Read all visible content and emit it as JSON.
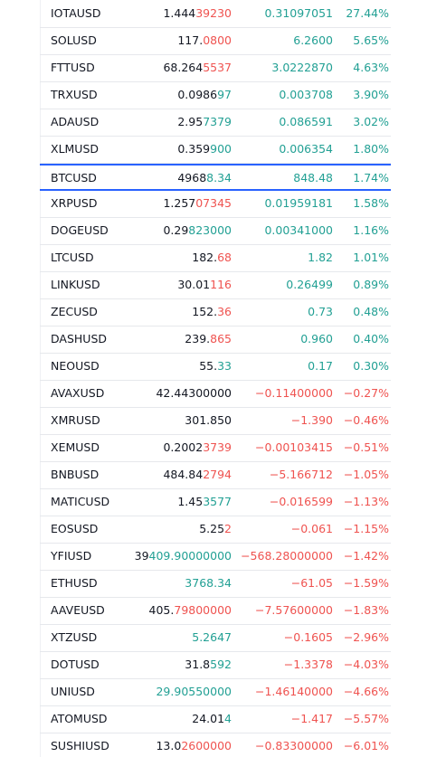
{
  "rows": [
    {
      "symbol": "IOTAUSD",
      "last": "1.444",
      "last_tick": "39230",
      "tick_dir": "down",
      "change": "0.31097051",
      "change_pct": "27.44%"
    },
    {
      "symbol": "SOLUSD",
      "last": "117.",
      "last_tick": "0800",
      "tick_dir": "down",
      "change": "6.2600",
      "change_pct": "5.65%"
    },
    {
      "symbol": "FTTUSD",
      "last": "68.264",
      "last_tick": "5537",
      "tick_dir": "down",
      "change": "3.0222870",
      "change_pct": "4.63%"
    },
    {
      "symbol": "TRXUSD",
      "last": "0.0986",
      "last_tick": "97",
      "tick_dir": "up",
      "change": "0.003708",
      "change_pct": "3.90%"
    },
    {
      "symbol": "ADAUSD",
      "last": "2.95",
      "last_tick": "7379",
      "tick_dir": "up",
      "change": "0.086591",
      "change_pct": "3.02%"
    },
    {
      "symbol": "XLMUSD",
      "last": "0.359",
      "last_tick": "900",
      "tick_dir": "up",
      "change": "0.006354",
      "change_pct": "1.80%"
    },
    {
      "symbol": "BTCUSD",
      "last": "4968",
      "last_tick": "8.34",
      "tick_dir": "up",
      "change": "848.48",
      "change_pct": "1.74%",
      "selected": true
    },
    {
      "symbol": "XRPUSD",
      "last": "1.257",
      "last_tick": "07345",
      "tick_dir": "down",
      "change": "0.01959181",
      "change_pct": "1.58%"
    },
    {
      "symbol": "DOGEUSD",
      "last": "0.29",
      "last_tick": "823000",
      "tick_dir": "up",
      "change": "0.00341000",
      "change_pct": "1.16%"
    },
    {
      "symbol": "LTCUSD",
      "last": "182.",
      "last_tick": "68",
      "tick_dir": "down",
      "change": "1.82",
      "change_pct": "1.01%"
    },
    {
      "symbol": "LINKUSD",
      "last": "30.01",
      "last_tick": "116",
      "tick_dir": "down",
      "change": "0.26499",
      "change_pct": "0.89%"
    },
    {
      "symbol": "ZECUSD",
      "last": "152.",
      "last_tick": "36",
      "tick_dir": "down",
      "change": "0.73",
      "change_pct": "0.48%"
    },
    {
      "symbol": "DASHUSD",
      "last": "239.",
      "last_tick": "865",
      "tick_dir": "down",
      "change": "0.960",
      "change_pct": "0.40%"
    },
    {
      "symbol": "NEOUSD",
      "last": "55.",
      "last_tick": "33",
      "tick_dir": "up",
      "change": "0.17",
      "change_pct": "0.30%"
    },
    {
      "symbol": "AVAXUSD",
      "last": "42.44300000",
      "change": "−0.11400000",
      "change_pct": "−0.27%"
    },
    {
      "symbol": "XMRUSD",
      "last": "301.850",
      "change": "−1.390",
      "change_pct": "−0.46%"
    },
    {
      "symbol": "XEMUSD",
      "last": "0.2002",
      "last_tick": "3739",
      "tick_dir": "down",
      "change": "−0.00103415",
      "change_pct": "−0.51%"
    },
    {
      "symbol": "BNBUSD",
      "last": "484.84",
      "last_tick": "2794",
      "tick_dir": "down",
      "change": "−5.166712",
      "change_pct": "−1.05%"
    },
    {
      "symbol": "MATICUSD",
      "last": "1.45",
      "last_tick": "3577",
      "tick_dir": "up",
      "change": "−0.016599",
      "change_pct": "−1.13%"
    },
    {
      "symbol": "EOSUSD",
      "last": "5.25",
      "last_tick": "2",
      "tick_dir": "down",
      "change": "−0.061",
      "change_pct": "−1.15%"
    },
    {
      "symbol": "YFIUSD",
      "last": "39",
      "last_tick": "409.90000000",
      "tick_dir": "up",
      "change": "−568.28000000",
      "change_pct": "−1.42%"
    },
    {
      "symbol": "ETHUSD",
      "last_tick": "3768.34",
      "tick_dir": "up",
      "change": "−61.05",
      "change_pct": "−1.59%"
    },
    {
      "symbol": "AAVEUSD",
      "last": "405.",
      "last_tick": "79800000",
      "tick_dir": "down",
      "change": "−7.57600000",
      "change_pct": "−1.83%"
    },
    {
      "symbol": "XTZUSD",
      "last_tick": "5.2647",
      "tick_dir": "up",
      "change": "−0.1605",
      "change_pct": "−2.96%"
    },
    {
      "symbol": "DOTUSD",
      "last": "31.8",
      "last_tick": "592",
      "tick_dir": "up",
      "change": "−1.3378",
      "change_pct": "−4.03%"
    },
    {
      "symbol": "UNIUSD",
      "last_tick": "29.90550000",
      "tick_dir": "up",
      "change": "−1.46140000",
      "change_pct": "−4.66%"
    },
    {
      "symbol": "ATOMUSD",
      "last": "24.01",
      "last_tick": "4",
      "tick_dir": "up",
      "change": "−1.417",
      "change_pct": "−5.57%"
    },
    {
      "symbol": "SUSHIUSD",
      "last": "13.0",
      "last_tick": "2600000",
      "tick_dir": "down",
      "change": "−0.83300000",
      "change_pct": "−6.01%"
    }
  ]
}
